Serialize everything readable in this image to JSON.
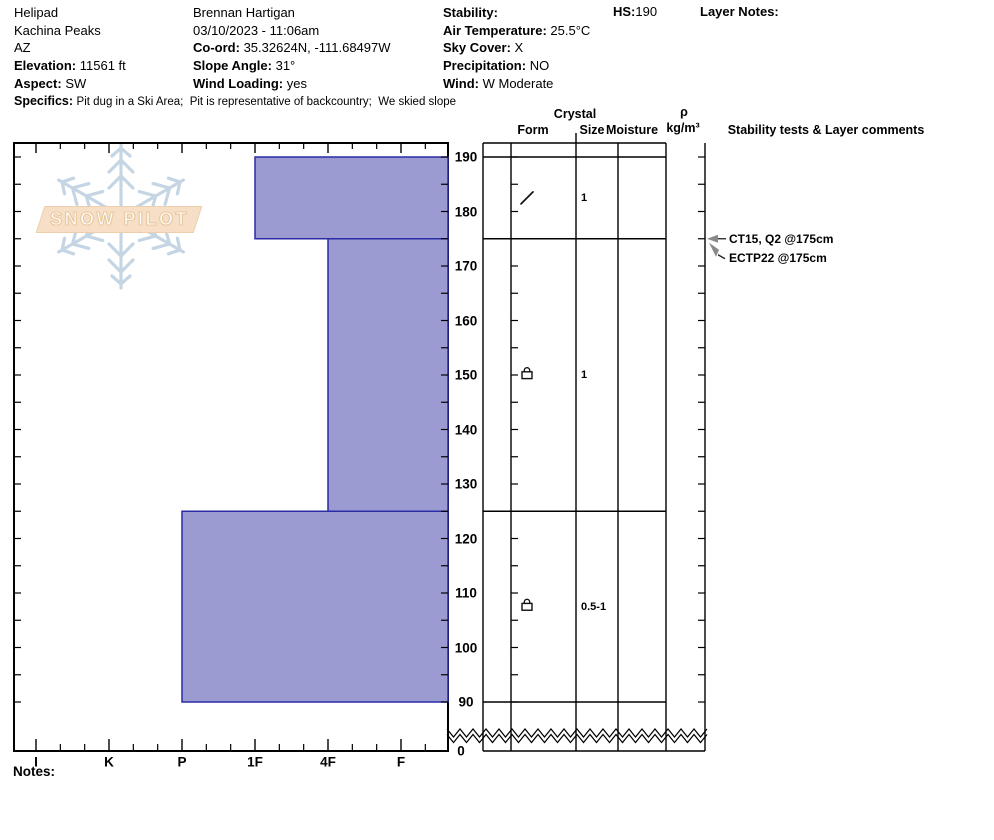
{
  "header": {
    "col1": {
      "site_name": "Helipad",
      "site_range": "Kachina Peaks",
      "site_state": "AZ",
      "elevation_label": "Elevation:",
      "elevation_value": "11561 ft",
      "aspect_label": "Aspect:",
      "aspect_value": "SW"
    },
    "col2": {
      "observer": "Brennan Hartigan",
      "datetime": "03/10/2023 - 11:06am",
      "coord_label": "Co-ord:",
      "coord_value": "35.32624N, -111.68497W",
      "slope_label": "Slope Angle:",
      "slope_value": "31°",
      "wind_loading_label": "Wind Loading:",
      "wind_loading_value": "yes"
    },
    "col3": {
      "stability_label": "Stability:",
      "stability_value": "",
      "air_temp_label": "Air Temperature:",
      "air_temp_value": "25.5°C",
      "sky_label": "Sky Cover:",
      "sky_value": "X",
      "precip_label": "Precipitation:",
      "precip_value": "NO",
      "wind_label": "Wind:",
      "wind_value": "W Moderate"
    },
    "hs_label": "HS:",
    "hs_value": "190",
    "layer_notes_label": "Layer Notes:",
    "layer_notes_value": "",
    "specifics_label": "Specifics:",
    "specifics_value": "Pit dug in a Ski Area;  Pit is representative of backcountry;  We skied slope"
  },
  "logo_text": "SNOW PILOT",
  "panel": {
    "crystal": "Crystal",
    "form": "Form",
    "size": "Size",
    "moisture": "Moisture",
    "rho": "ρ",
    "rho_units": "kg/m³",
    "stability": "Stability tests & Layer comments"
  },
  "notes_label": "Notes:",
  "chart_data": {
    "type": "snow-profile-bar",
    "depth_axis": {
      "unit": "cm",
      "tick_labels": [
        190,
        180,
        170,
        160,
        150,
        140,
        130,
        120,
        110,
        100,
        90
      ],
      "break_label": "0",
      "minor_step_cm": 5
    },
    "hardness_axis": {
      "tick_labels": [
        "I",
        "K",
        "P",
        "1F",
        "4F",
        "F"
      ]
    },
    "total_depth_hs_cm": 190,
    "layers": [
      {
        "top_cm": 190,
        "bottom_cm": 175,
        "hardness": "1F",
        "grain_form": "DF",
        "grain_form_symbol": "slash",
        "grain_size_mm": "1"
      },
      {
        "top_cm": 175,
        "bottom_cm": 125,
        "hardness": "4F",
        "grain_form": "FCxr",
        "grain_form_symbol": "square-arc",
        "grain_size_mm": "1"
      },
      {
        "top_cm": 125,
        "bottom_cm": 90,
        "hardness": "P",
        "grain_form": "FCxr",
        "grain_form_symbol": "square-arc",
        "grain_size_mm": "0.5-1"
      }
    ],
    "stability_tests": [
      {
        "label": "CT15, Q2 @175cm",
        "depth_cm": 175
      },
      {
        "label": "ECTP22 @175cm",
        "depth_cm": 175
      }
    ],
    "colors": {
      "layer_fill": "#9b9bd2",
      "layer_stroke": "#2b2ba6",
      "axis": "#000000",
      "arrowhead": "#8a8a8a"
    }
  }
}
